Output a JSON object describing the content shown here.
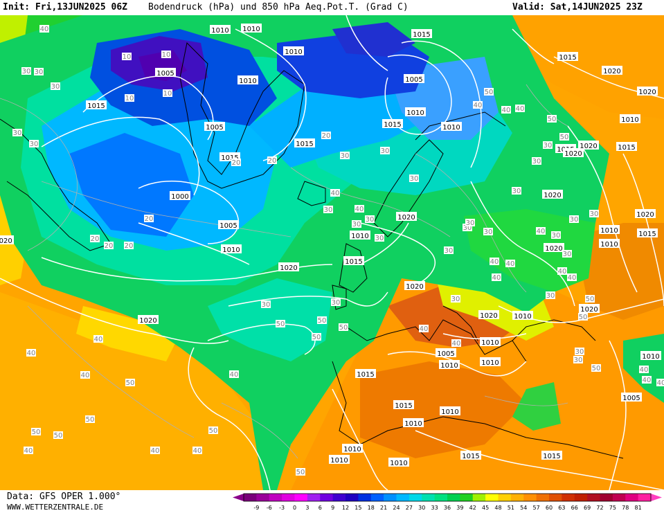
{
  "header": {
    "init": "Init: Fri,13JUN2025 06Z",
    "title": "Bodendruck (hPa) und 850 hPa Aeq.Pot.T. (Grad C)",
    "valid": "Valid: Sat,14JUN2025 23Z"
  },
  "footer": {
    "source": "Data: GFS OPER 1.000°",
    "site": "WWW.WETTERZENTRALE.DE"
  },
  "colorbar": {
    "ticks": [
      "-9",
      "-6",
      "-3",
      "0",
      "3",
      "6",
      "9",
      "12",
      "15",
      "18",
      "21",
      "24",
      "27",
      "30",
      "33",
      "36",
      "39",
      "42",
      "45",
      "48",
      "51",
      "54",
      "57",
      "60",
      "63",
      "66",
      "69",
      "72",
      "75",
      "78",
      "81"
    ],
    "colors": [
      "#7a007a",
      "#9a009a",
      "#c000c0",
      "#e000e0",
      "#ff00ff",
      "#a020f0",
      "#7000e0",
      "#4000d0",
      "#2000c0",
      "#0030e0",
      "#0060ff",
      "#0090ff",
      "#00b8ff",
      "#00d8e8",
      "#00e0b0",
      "#00e080",
      "#00d050",
      "#20d020",
      "#a0f000",
      "#ffff00",
      "#ffd000",
      "#ffb000",
      "#ff9000",
      "#f07000",
      "#e05000",
      "#d03000",
      "#c02000",
      "#b01020",
      "#a00030",
      "#c00050",
      "#e00080",
      "#ff20a0"
    ]
  },
  "map": {
    "pressure_labels": [
      "1010",
      "1010",
      "1015",
      "1005",
      "1010",
      "1010",
      "1015",
      "1005",
      "1015",
      "1005",
      "1010",
      "1015",
      "1010",
      "1015",
      "1000",
      "1005",
      "1010",
      "1020",
      "1010",
      "1015",
      "1020",
      "1020",
      "1020",
      "1015",
      "1010",
      "1010",
      "1015",
      "1020",
      "1020",
      "1020",
      "1020",
      "1020",
      "1020",
      "1015",
      "1020",
      "1015",
      "1020",
      "1020",
      "1010",
      "1015",
      "1010",
      "1010",
      "1005",
      "1010",
      "1015",
      "1015",
      "1010",
      "1010",
      "1010",
      "1010",
      "1010",
      "1010",
      "1005",
      "1010",
      "1015",
      "1020"
    ],
    "temp_labels": [
      "40",
      "30",
      "30",
      "30",
      "30",
      "30",
      "20",
      "20",
      "20",
      "20",
      "10",
      "10",
      "10",
      "10",
      "20",
      "20",
      "20",
      "30",
      "30",
      "30",
      "40",
      "40",
      "30",
      "30",
      "30",
      "30",
      "30",
      "30",
      "50",
      "50",
      "50",
      "50",
      "40",
      "40",
      "40",
      "50",
      "50",
      "50",
      "50",
      "40",
      "40",
      "40",
      "40",
      "50",
      "50",
      "50",
      "40",
      "40",
      "40",
      "30",
      "30",
      "30",
      "30",
      "30",
      "40",
      "40",
      "40",
      "40",
      "40",
      "50",
      "50",
      "50",
      "40",
      "40",
      "40",
      "30",
      "30",
      "30",
      "30",
      "30",
      "30",
      "30",
      "40",
      "40",
      "40",
      "50",
      "40",
      "50",
      "50",
      "30",
      "30",
      "30"
    ]
  }
}
